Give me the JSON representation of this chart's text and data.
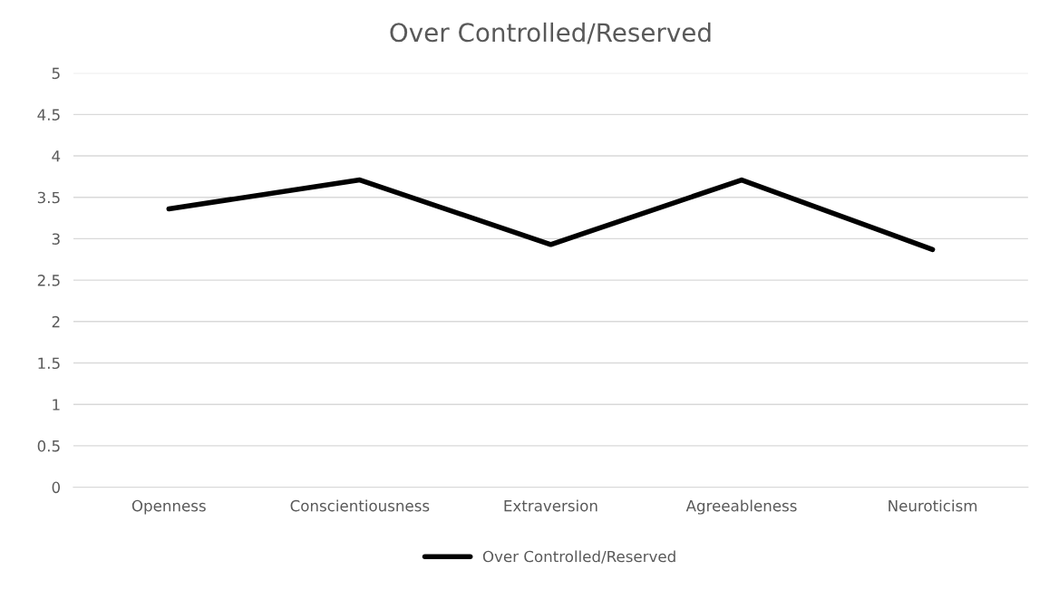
{
  "chart_data": {
    "type": "line",
    "title": "Over Controlled/Reserved",
    "categories": [
      "Openness",
      "Conscientiousness",
      "Extraversion",
      "Agreeableness",
      "Neuroticism"
    ],
    "series": [
      {
        "name": "Over Controlled/Reserved",
        "color": "#000000",
        "values": [
          3.36,
          3.71,
          2.93,
          3.71,
          2.87
        ]
      }
    ],
    "ylim": [
      0,
      5
    ],
    "yticks": [
      0,
      0.5,
      1,
      1.5,
      2,
      2.5,
      3,
      3.5,
      4,
      4.5,
      5
    ],
    "grid": "y",
    "legend": "bottom",
    "marker": "none"
  }
}
